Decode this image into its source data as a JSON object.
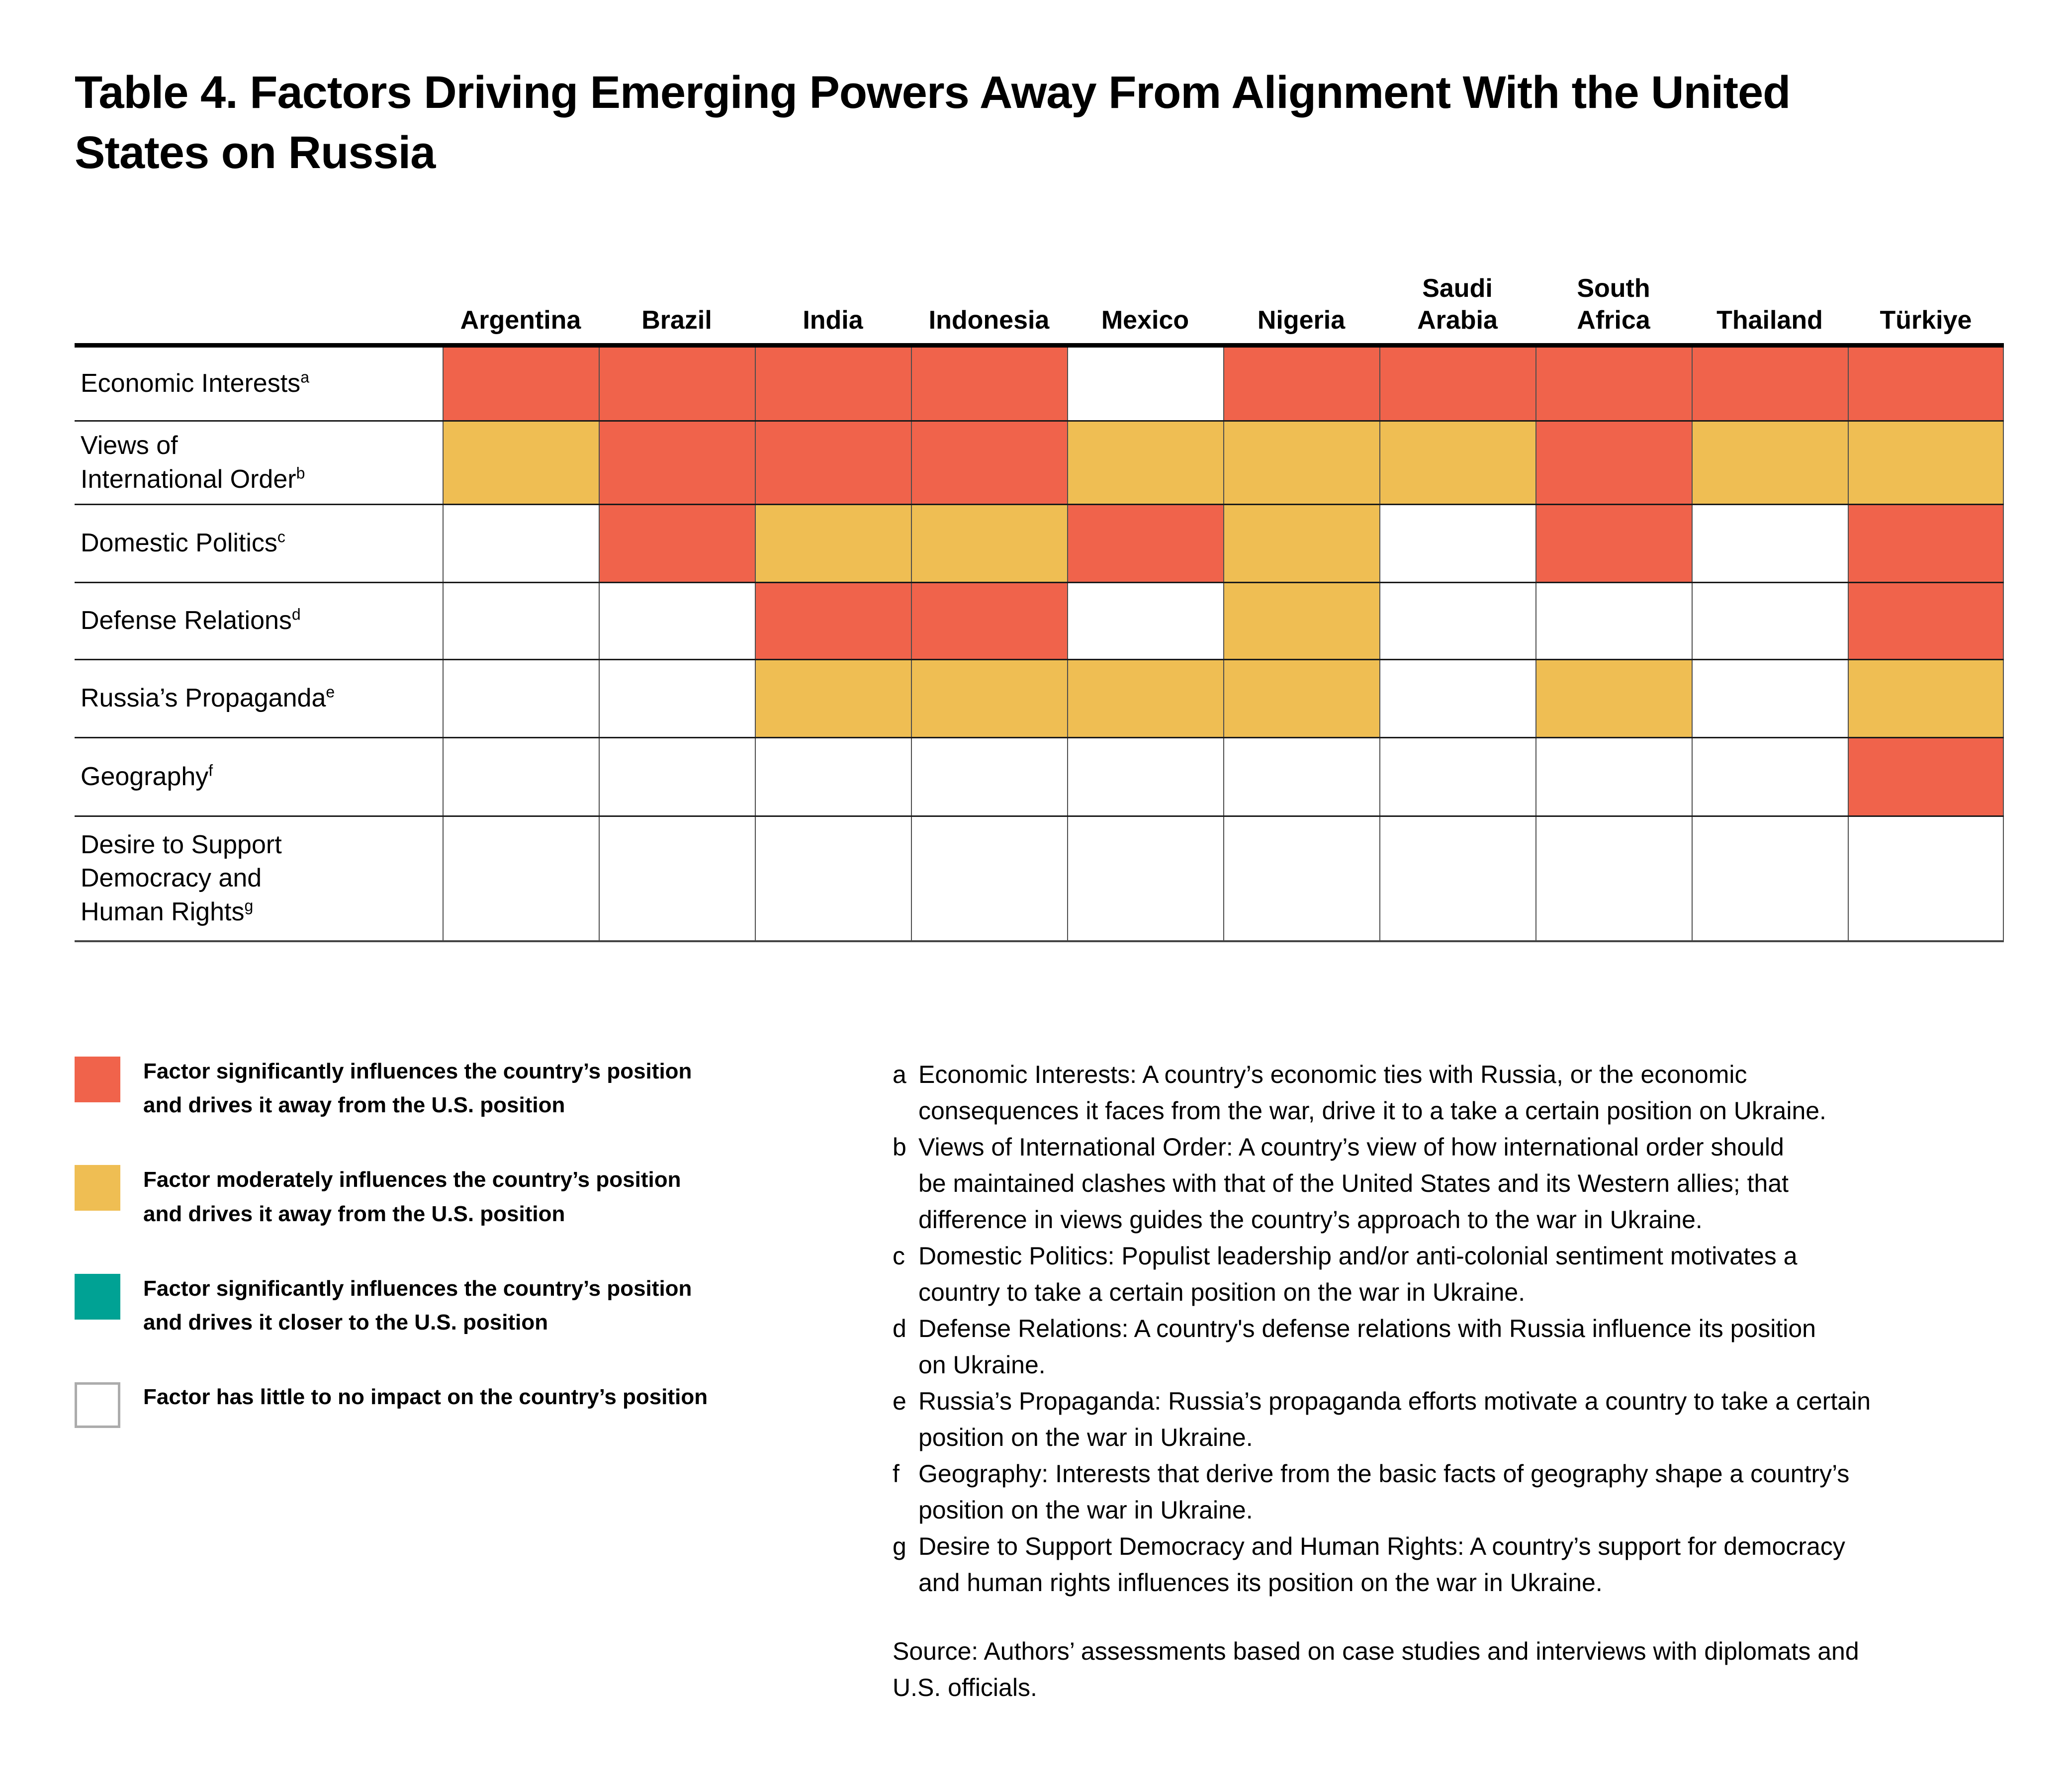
{
  "title": "Table 4. Factors Driving Emerging Powers Away From Alignment With the United States on Russia",
  "colors": {
    "significant-away": "#F0634B",
    "moderate-away": "#EFBE53",
    "significant-closer": "#00A294",
    "none": "#FFFFFF",
    "grid_vertical": "#4D4D4D",
    "grid_horizontal": "#1A1A1A",
    "header_rule": "#000000",
    "empty_swatch_border": "#ACACAC"
  },
  "table": {
    "columns": [
      "Argentina",
      "Brazil",
      "India",
      "Indonesia",
      "Mexico",
      "Nigeria",
      "Saudi\nArabia",
      "South\nAfrica",
      "Thailand",
      "Türkiye"
    ],
    "rows": [
      {
        "label": "Economic Interests",
        "sup": "a",
        "cells": [
          "significant-away",
          "significant-away",
          "significant-away",
          "significant-away",
          "none",
          "significant-away",
          "significant-away",
          "significant-away",
          "significant-away",
          "significant-away"
        ]
      },
      {
        "label": "Views of\nInternational Order",
        "sup": "b",
        "cells": [
          "moderate-away",
          "significant-away",
          "significant-away",
          "significant-away",
          "moderate-away",
          "moderate-away",
          "moderate-away",
          "significant-away",
          "moderate-away",
          "moderate-away"
        ]
      },
      {
        "label": "Domestic Politics",
        "sup": "c",
        "cells": [
          "none",
          "significant-away",
          "moderate-away",
          "moderate-away",
          "significant-away",
          "moderate-away",
          "none",
          "significant-away",
          "none",
          "significant-away"
        ]
      },
      {
        "label": "Defense Relations",
        "sup": "d",
        "cells": [
          "none",
          "none",
          "significant-away",
          "significant-away",
          "none",
          "moderate-away",
          "none",
          "none",
          "none",
          "significant-away"
        ]
      },
      {
        "label": "Russia’s Propaganda",
        "sup": "e",
        "cells": [
          "none",
          "none",
          "moderate-away",
          "moderate-away",
          "moderate-away",
          "moderate-away",
          "none",
          "moderate-away",
          "none",
          "moderate-away"
        ]
      },
      {
        "label": "Geography",
        "sup": "f",
        "cells": [
          "none",
          "none",
          "none",
          "none",
          "none",
          "none",
          "none",
          "none",
          "none",
          "significant-away"
        ]
      },
      {
        "label": "Desire to Support\nDemocracy and\nHuman Rights",
        "sup": "g",
        "cells": [
          "none",
          "none",
          "none",
          "none",
          "none",
          "none",
          "none",
          "none",
          "none",
          "none"
        ]
      }
    ]
  },
  "legend": [
    {
      "key": "significant-away",
      "label": "Factor significantly influences the country’s position\nand drives it away from the U.S. position"
    },
    {
      "key": "moderate-away",
      "label": "Factor moderately influences the country’s position\nand drives it away from the U.S. position"
    },
    {
      "key": "significant-closer",
      "label": "Factor significantly influences the country’s position\nand drives it closer to the U.S. position"
    },
    {
      "key": "none",
      "label": "Factor has little to no impact on the country’s position"
    }
  ],
  "footnotes": [
    {
      "letter": "a",
      "text": "Economic Interests: A country’s economic ties with Russia, or the economic\nconsequences it faces from the war, drive it to a take a certain position on Ukraine."
    },
    {
      "letter": "b",
      "text": "Views of International Order: A country’s view of how international order should\nbe maintained clashes with that of the United States and its Western allies; that\ndifference in views guides the country’s approach to the war in Ukraine."
    },
    {
      "letter": "c",
      "text": "Domestic Politics: Populist leadership and/or anti-colonial sentiment motivates a\ncountry to take a certain position on the war in Ukraine."
    },
    {
      "letter": "d",
      "text": "Defense Relations: A country's defense relations with Russia influence its position\non Ukraine."
    },
    {
      "letter": "e",
      "text": "Russia’s Propaganda: Russia’s propaganda efforts motivate a country to take a certain\nposition on the war in Ukraine."
    },
    {
      "letter": "f",
      "text": "Geography: Interests that derive from the basic facts of geography shape a country’s\nposition on the war in Ukraine."
    },
    {
      "letter": "g",
      "text": "Desire to Support Democracy and Human Rights: A country’s support for democracy\nand human rights influences its position on the war in Ukraine."
    }
  ],
  "source": "Source: Authors’ assessments based on case studies and interviews with diplomats and\nU.S. officials.",
  "chart_data": {
    "type": "heatmap",
    "title": "Table 4. Factors Driving Emerging Powers Away From Alignment With the United States on Russia",
    "x_categories": [
      "Argentina",
      "Brazil",
      "India",
      "Indonesia",
      "Mexico",
      "Nigeria",
      "Saudi Arabia",
      "South Africa",
      "Thailand",
      "Türkiye"
    ],
    "y_categories": [
      "Economic Interests",
      "Views of International Order",
      "Domestic Politics",
      "Defense Relations",
      "Russia’s Propaganda",
      "Geography",
      "Desire to Support Democracy and Human Rights"
    ],
    "values": [
      [
        "significant-away",
        "significant-away",
        "significant-away",
        "significant-away",
        "none",
        "significant-away",
        "significant-away",
        "significant-away",
        "significant-away",
        "significant-away"
      ],
      [
        "moderate-away",
        "significant-away",
        "significant-away",
        "significant-away",
        "moderate-away",
        "moderate-away",
        "moderate-away",
        "significant-away",
        "moderate-away",
        "moderate-away"
      ],
      [
        "none",
        "significant-away",
        "moderate-away",
        "moderate-away",
        "significant-away",
        "moderate-away",
        "none",
        "significant-away",
        "none",
        "significant-away"
      ],
      [
        "none",
        "none",
        "significant-away",
        "significant-away",
        "none",
        "moderate-away",
        "none",
        "none",
        "none",
        "significant-away"
      ],
      [
        "none",
        "none",
        "moderate-away",
        "moderate-away",
        "moderate-away",
        "moderate-away",
        "none",
        "moderate-away",
        "none",
        "moderate-away"
      ],
      [
        "none",
        "none",
        "none",
        "none",
        "none",
        "none",
        "none",
        "none",
        "none",
        "significant-away"
      ],
      [
        "none",
        "none",
        "none",
        "none",
        "none",
        "none",
        "none",
        "none",
        "none",
        "none"
      ]
    ],
    "value_legend": {
      "significant-away": "Factor significantly influences the country’s position and drives it away from the U.S. position",
      "moderate-away": "Factor moderately influences the country’s position and drives it away from the U.S. position",
      "significant-closer": "Factor significantly influences the country’s position and drives it closer to the U.S. position",
      "none": "Factor has little to no impact on the country’s position"
    },
    "legend_position": "bottom-left",
    "grid": true
  }
}
